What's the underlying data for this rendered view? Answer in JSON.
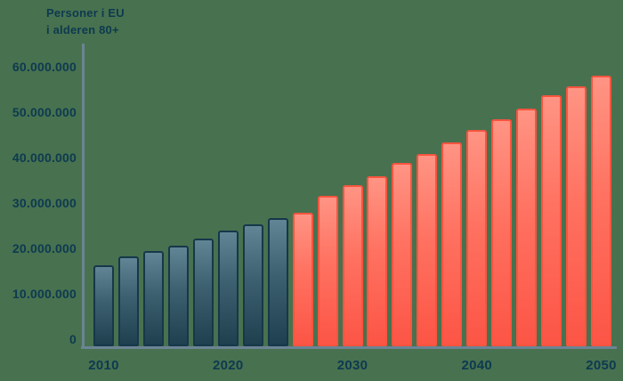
{
  "colors": {
    "background": "#48714f",
    "text": "#0d3a50",
    "axis_line": "#6c8494"
  },
  "chart_data": {
    "type": "bar",
    "title_lines": [
      "Personer i EU",
      "i alderen 80+"
    ],
    "title": "Personer i EU i alderen 80+",
    "xlabel": "",
    "ylabel": "",
    "ylim": [
      0,
      60000000
    ],
    "grid": false,
    "legend": "none",
    "y_tick_labels": [
      "0",
      "10.000.000",
      "20.000.000",
      "30.000.000",
      "40.000.000",
      "50.000.000",
      "60.000.000"
    ],
    "x_tick_labels": [
      "2010",
      "2020",
      "2030",
      "2040",
      "2050"
    ],
    "categories": [
      2010,
      2012,
      2014,
      2016,
      2018,
      2020,
      2022,
      2024,
      2026,
      2028,
      2030,
      2032,
      2034,
      2036,
      2038,
      2040,
      2042,
      2044,
      2046,
      2048,
      2050
    ],
    "values": [
      17900000,
      19800000,
      21000000,
      22200000,
      23700000,
      25400000,
      26900000,
      28200000,
      29500000,
      33100000,
      35400000,
      37500000,
      40300000,
      42400000,
      45000000,
      47600000,
      50000000,
      52300000,
      55200000,
      57300000,
      59700000
    ],
    "series": [
      {
        "name": "dark-teal-bars",
        "from_year": 2010,
        "to_year": 2024,
        "border": "#16384a",
        "color_top": "#618595",
        "color_mid": "#3d6070",
        "color_bottom": "#1e404f"
      },
      {
        "name": "red-coral-bars",
        "from_year": 2026,
        "to_year": 2050,
        "border": "#f8543f",
        "color_top": "#ff9484",
        "color_mid": "#ff7160",
        "color_bottom": "#fc5546"
      }
    ]
  }
}
